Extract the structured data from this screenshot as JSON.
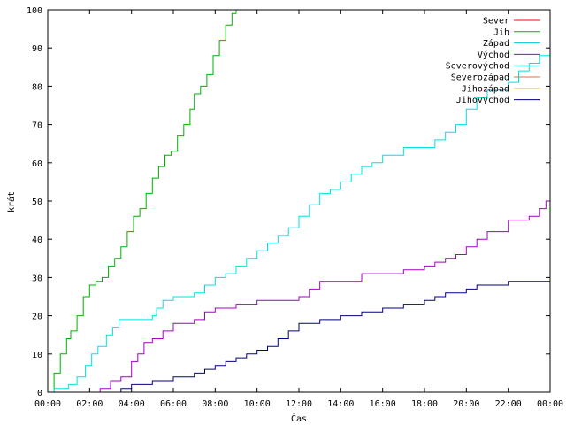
{
  "chart_data": {
    "type": "line",
    "xlabel": "Čas",
    "ylabel": "krát",
    "xlim": [
      0,
      24
    ],
    "ylim": [
      0,
      100
    ],
    "x_ticks": [
      "00:00",
      "02:00",
      "04:00",
      "06:00",
      "08:00",
      "10:00",
      "12:00",
      "14:00",
      "16:00",
      "18:00",
      "20:00",
      "22:00",
      "00:00"
    ],
    "y_ticks": [
      "0",
      "10",
      "20",
      "30",
      "40",
      "50",
      "60",
      "70",
      "80",
      "90",
      "100"
    ],
    "grid": false,
    "legend_position": "top-right",
    "legend": [
      "Sever",
      "Jih",
      "Západ",
      "Východ",
      "Severovýchod",
      "Severozápad",
      "Jihozápad",
      "Jihovýchod"
    ],
    "series": [
      {
        "name": "Sever",
        "color": "#ff0000",
        "x": [],
        "y": []
      },
      {
        "name": "Jih",
        "color": "#00b000",
        "x": [
          0.0,
          0.3,
          0.6,
          0.9,
          1.1,
          1.4,
          1.7,
          2.0,
          2.3,
          2.6,
          2.9,
          3.2,
          3.5,
          3.8,
          4.1,
          4.4,
          4.7,
          5.0,
          5.3,
          5.6,
          5.9,
          6.2,
          6.5,
          6.8,
          7.0,
          7.3,
          7.6,
          7.9,
          8.2,
          8.5,
          8.8,
          9.0
        ],
        "y": [
          0,
          5,
          10,
          14,
          16,
          20,
          25,
          28,
          29,
          30,
          33,
          35,
          38,
          42,
          46,
          48,
          52,
          56,
          59,
          62,
          63,
          67,
          70,
          74,
          78,
          80,
          83,
          88,
          92,
          96,
          99,
          100
        ]
      },
      {
        "name": "Západ",
        "color": "#00c8d0",
        "x": [],
        "y": []
      },
      {
        "name": "Východ",
        "color": "#a000c0",
        "x": [
          0.0,
          2.0,
          2.5,
          3.0,
          3.5,
          4.0,
          4.3,
          4.6,
          5.0,
          5.5,
          6.0,
          6.5,
          7.0,
          7.5,
          8.0,
          9.0,
          10.0,
          11.0,
          12.0,
          12.5,
          13.0,
          14.0,
          15.0,
          16.0,
          17.0,
          18.0,
          18.5,
          19.0,
          19.5,
          20.0,
          20.5,
          21.0,
          22.0,
          23.0,
          23.5,
          23.8,
          24.0
        ],
        "y": [
          0,
          0,
          1,
          3,
          4,
          8,
          10,
          13,
          14,
          16,
          18,
          18,
          19,
          21,
          22,
          23,
          24,
          24,
          25,
          27,
          29,
          29,
          31,
          31,
          32,
          33,
          34,
          35,
          36,
          38,
          40,
          42,
          45,
          46,
          48,
          50,
          52
        ]
      },
      {
        "name": "Severovýchod",
        "color": "#00e0e0",
        "x": [
          0.0,
          0.3,
          0.6,
          1.0,
          1.4,
          1.8,
          2.1,
          2.4,
          2.8,
          3.1,
          3.4,
          4.0,
          5.0,
          5.2,
          5.5,
          6.0,
          7.0,
          7.5,
          8.0,
          8.5,
          9.0,
          9.5,
          10.0,
          10.5,
          11.0,
          11.5,
          12.0,
          12.5,
          13.0,
          13.5,
          14.0,
          14.5,
          15.0,
          15.5,
          16.0,
          17.0,
          18.0,
          18.5,
          19.0,
          19.5,
          20.0,
          20.5,
          21.0,
          22.0,
          22.5,
          23.0,
          23.5,
          24.0
        ],
        "y": [
          0,
          1,
          1,
          2,
          4,
          7,
          10,
          12,
          15,
          17,
          19,
          19,
          20,
          22,
          24,
          25,
          26,
          28,
          30,
          31,
          33,
          35,
          37,
          39,
          41,
          43,
          46,
          49,
          52,
          53,
          55,
          57,
          59,
          60,
          62,
          64,
          64,
          66,
          68,
          70,
          74,
          77,
          79,
          81,
          84,
          86,
          88,
          90
        ]
      },
      {
        "name": "Severozápad",
        "color": "#c08040",
        "x": [],
        "y": []
      },
      {
        "name": "Jihozápad",
        "color": "#f0e000",
        "x": [],
        "y": []
      },
      {
        "name": "Jihovýchod",
        "color": "#000080",
        "x": [
          0.0,
          3.0,
          3.5,
          4.0,
          5.0,
          6.0,
          6.5,
          7.0,
          7.5,
          8.0,
          8.5,
          9.0,
          9.5,
          10.0,
          10.5,
          11.0,
          11.5,
          12.0,
          13.0,
          14.0,
          14.5,
          15.0,
          15.5,
          16.0,
          17.0,
          18.0,
          18.5,
          19.0,
          19.5,
          20.0,
          20.5,
          21.0,
          22.0,
          23.0,
          24.0
        ],
        "y": [
          0,
          0,
          1,
          2,
          3,
          4,
          4,
          5,
          6,
          7,
          8,
          9,
          10,
          11,
          12,
          14,
          16,
          18,
          19,
          20,
          20,
          21,
          21,
          22,
          23,
          24,
          25,
          26,
          26,
          27,
          28,
          28,
          29,
          29,
          29
        ]
      }
    ]
  }
}
